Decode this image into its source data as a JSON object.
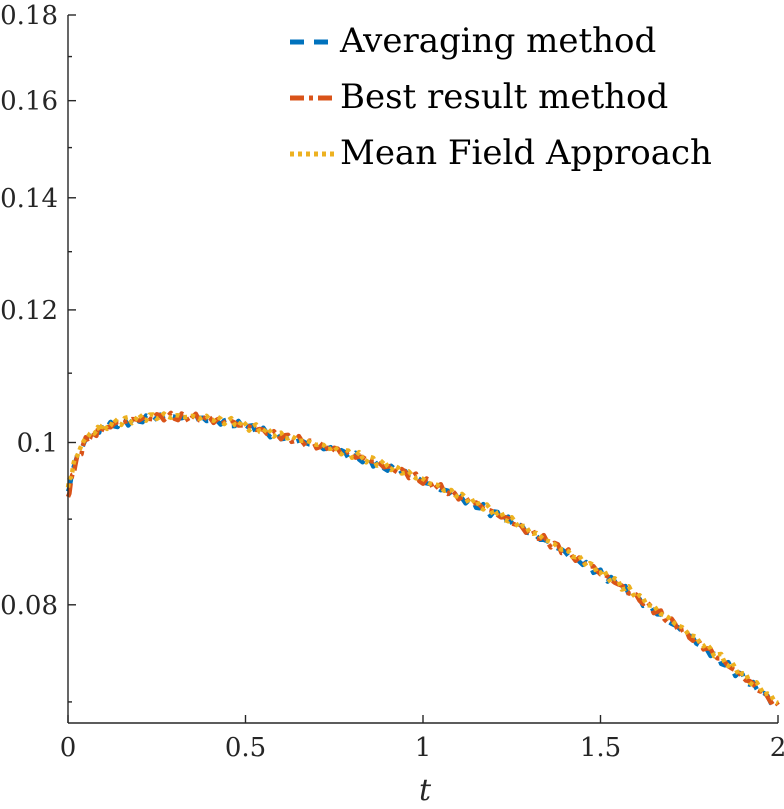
{
  "chart_data": {
    "type": "line",
    "xlabel": "t",
    "ylabel": "",
    "xlim": [
      0,
      2
    ],
    "ylim": [
      0.068,
      0.18
    ],
    "yscale": "log",
    "grid": false,
    "legend_position": "top-right",
    "x_ticks": [
      0,
      0.5,
      1,
      1.5,
      2
    ],
    "x_tick_labels": [
      "0",
      "0.5",
      "1",
      "1.5",
      "2"
    ],
    "y_ticks": [
      0.08,
      0.1,
      0.12,
      0.14,
      0.16,
      0.18
    ],
    "y_tick_labels": [
      "0.08",
      "0.1",
      "0.12",
      "0.14",
      "0.16",
      "0.18"
    ],
    "x": [
      0,
      0.02,
      0.05,
      0.08,
      0.1,
      0.15,
      0.2,
      0.25,
      0.3,
      0.35,
      0.4,
      0.45,
      0.5,
      0.55,
      0.6,
      0.65,
      0.7,
      0.75,
      0.8,
      0.85,
      0.9,
      0.95,
      1.0,
      1.05,
      1.1,
      1.15,
      1.2,
      1.25,
      1.3,
      1.35,
      1.4,
      1.45,
      1.5,
      1.55,
      1.6,
      1.65,
      1.7,
      1.75,
      1.8,
      1.85,
      1.9,
      1.95,
      2.0
    ],
    "series": [
      {
        "name": "Averaging method",
        "color": "#0072BD",
        "dash": "dash",
        "values": [
          0.0935,
          0.0975,
          0.1005,
          0.1015,
          0.102,
          0.1028,
          0.1032,
          0.1035,
          0.1035,
          0.1034,
          0.1032,
          0.1028,
          0.1022,
          0.1015,
          0.1008,
          0.1002,
          0.0996,
          0.0989,
          0.0982,
          0.0975,
          0.0966,
          0.0958,
          0.0948,
          0.0938,
          0.0928,
          0.0918,
          0.0907,
          0.0896,
          0.0884,
          0.0872,
          0.086,
          0.0848,
          0.0835,
          0.0822,
          0.0808,
          0.0794,
          0.078,
          0.0766,
          0.0752,
          0.0738,
          0.0724,
          0.071,
          0.0695
        ]
      },
      {
        "name": "Best result method",
        "color": "#D95319",
        "dash": "dashdot",
        "values": [
          0.0928,
          0.097,
          0.1003,
          0.1014,
          0.102,
          0.1029,
          0.1033,
          0.1036,
          0.1036,
          0.1035,
          0.1033,
          0.1029,
          0.1023,
          0.1016,
          0.1009,
          0.1003,
          0.0997,
          0.099,
          0.0983,
          0.0976,
          0.0967,
          0.0959,
          0.0949,
          0.0939,
          0.0929,
          0.0919,
          0.0908,
          0.0897,
          0.0885,
          0.0873,
          0.0861,
          0.0849,
          0.0836,
          0.0823,
          0.0809,
          0.0795,
          0.0781,
          0.0767,
          0.0753,
          0.0739,
          0.0725,
          0.0711,
          0.0697
        ]
      },
      {
        "name": "Mean Field Approach",
        "color": "#EDB120",
        "dash": "dot",
        "values": [
          0.094,
          0.0978,
          0.1007,
          0.1017,
          0.1022,
          0.103,
          0.1034,
          0.1037,
          0.1037,
          0.1036,
          0.1034,
          0.103,
          0.1024,
          0.1017,
          0.101,
          0.1004,
          0.0998,
          0.0991,
          0.0984,
          0.0977,
          0.0969,
          0.096,
          0.095,
          0.094,
          0.093,
          0.092,
          0.0909,
          0.0898,
          0.0886,
          0.0874,
          0.0862,
          0.085,
          0.0837,
          0.0824,
          0.0811,
          0.0797,
          0.0783,
          0.0769,
          0.0755,
          0.0741,
          0.0727,
          0.0713,
          0.0699
        ]
      }
    ]
  }
}
